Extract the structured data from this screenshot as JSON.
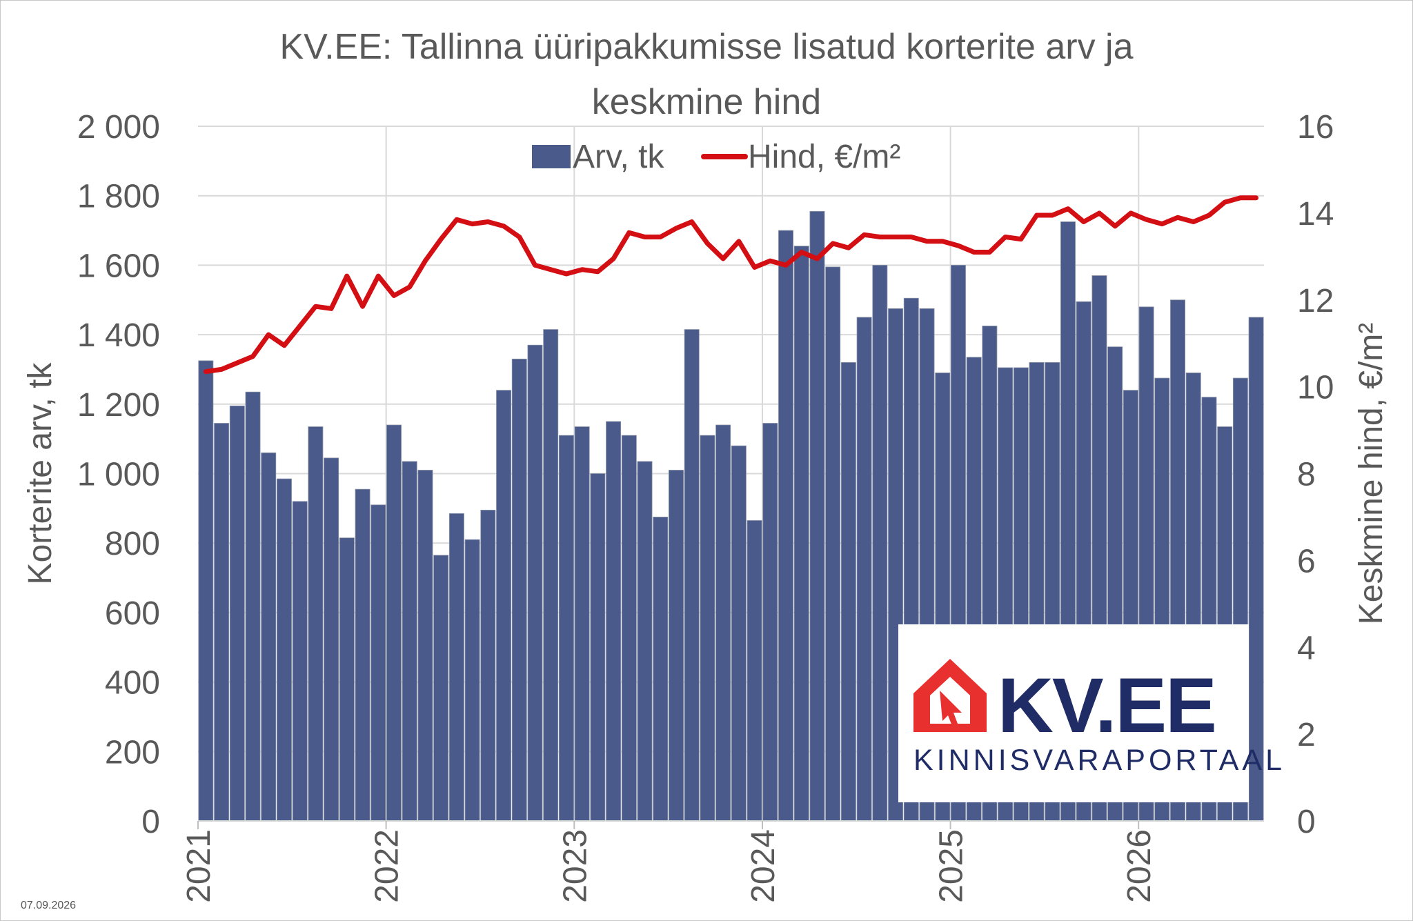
{
  "chart_data": {
    "type": "bar",
    "title": "KV.EE: Tallinna üüripakkumisse lisatud korterite arv ja keskmine hind",
    "title_lines": [
      "KV.EE: Tallinna üüripakkumisse lisatud korterite arv ja",
      "keskmine hind"
    ],
    "ylabel": "Korterite arv, tk",
    "y2label": "Keskmine hind, €/m²",
    "ylim": [
      0,
      2000
    ],
    "y2lim": [
      0,
      16
    ],
    "yticks": [
      "0",
      "200",
      "400",
      "600",
      "800",
      "1 000",
      "1 200",
      "1 400",
      "1 600",
      "1 800",
      "2 000"
    ],
    "y2ticks": [
      "0",
      "2",
      "4",
      "6",
      "8",
      "10",
      "12",
      "14",
      "16"
    ],
    "xticks": [
      "2021",
      "2022",
      "2023",
      "2024",
      "2025",
      "2026"
    ],
    "grid": true,
    "legend": "top-center",
    "series": [
      {
        "name": "Arv, tk",
        "type": "bar",
        "axis": "left",
        "color": "#4a5a8a",
        "values": [
          1325,
          1145,
          1195,
          1235,
          1060,
          985,
          920,
          1135,
          1045,
          815,
          955,
          910,
          1140,
          1035,
          1010,
          765,
          885,
          810,
          895,
          1240,
          1330,
          1370,
          1415,
          1110,
          1135,
          1000,
          1150,
          1110,
          1035,
          875,
          1010,
          1415,
          1110,
          1140,
          1080,
          865,
          1145,
          1700,
          1655,
          1755,
          1595,
          1320,
          1450,
          1600,
          1475,
          1505,
          1475,
          1290,
          1600,
          1335,
          1425,
          1305,
          1305,
          1320,
          1320,
          1725,
          1495,
          1570,
          1365,
          1240,
          1480,
          1275,
          1500,
          1290,
          1220,
          1135,
          1275,
          1450
        ]
      },
      {
        "name": "Hind, €/m²",
        "type": "line",
        "axis": "right",
        "color": "#d40f14",
        "values": [
          10.35,
          10.4,
          10.55,
          10.7,
          11.2,
          10.95,
          11.4,
          11.85,
          11.8,
          12.55,
          11.85,
          12.55,
          12.1,
          12.3,
          12.9,
          13.4,
          13.85,
          13.75,
          13.8,
          13.7,
          13.45,
          12.8,
          12.7,
          12.6,
          12.7,
          12.65,
          12.95,
          13.55,
          13.45,
          13.45,
          13.65,
          13.8,
          13.3,
          12.95,
          13.35,
          12.75,
          12.9,
          12.8,
          13.1,
          12.95,
          13.3,
          13.2,
          13.5,
          13.45,
          13.45,
          13.45,
          13.35,
          13.35,
          13.25,
          13.1,
          13.1,
          13.45,
          13.4,
          13.95,
          13.95,
          14.1,
          13.8,
          14.0,
          13.7,
          14.0,
          13.85,
          13.75,
          13.9,
          13.8,
          13.95,
          14.25,
          14.35,
          14.35
        ]
      }
    ]
  },
  "footer": {
    "date": "07.09.2026"
  },
  "logo": {
    "text": "KV.EE",
    "subtitle": "KINNISVARAPORTAAL"
  }
}
